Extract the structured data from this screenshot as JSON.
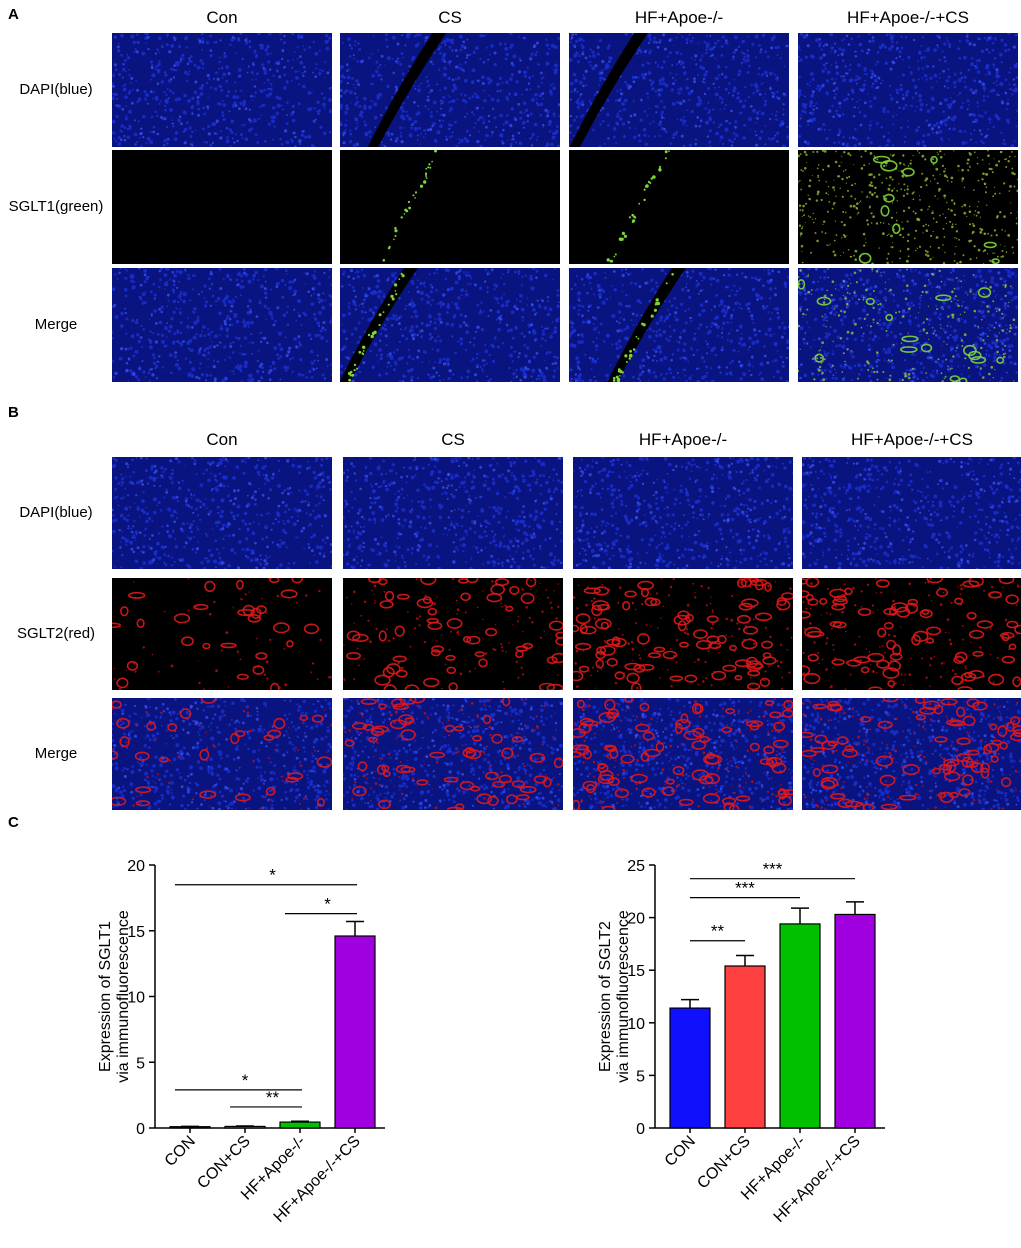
{
  "panel_a": {
    "label": "A",
    "columns": [
      "Con",
      "CS",
      "HF+Apoe-/-",
      "HF+Apoe-/-+CS"
    ],
    "rows": [
      "DAPI(blue)",
      "SGLT1(green)",
      "Merge"
    ]
  },
  "panel_b": {
    "label": "B",
    "columns": [
      "Con",
      "CS",
      "HF+Apoe-/-",
      "HF+Apoe-/-+CS"
    ],
    "rows": [
      "DAPI(blue)",
      "SGLT2(red)",
      "Merge"
    ]
  },
  "panel_c": {
    "label": "C"
  },
  "colors": {
    "dapi": "#1a2fd0",
    "sglt1": "#7dd63a",
    "sglt2": "#e01818",
    "bar_con": "#1010ff",
    "bar_con_cs": "#ff4040",
    "bar_hf": "#00c000",
    "bar_hf_cs": "#a000e0"
  },
  "chart_data": [
    {
      "type": "bar",
      "categories": [
        "CON",
        "CON+CS",
        "HF+Apoe-/-",
        "HF+Apoe-/-+CS"
      ],
      "values": [
        0.1,
        0.12,
        0.45,
        14.6
      ],
      "errors": [
        0.02,
        0.03,
        0.06,
        1.1
      ],
      "ylabel_line1": "Expression of SGLT1",
      "ylabel_line2": "via immunofluorescence",
      "ylim": [
        0,
        20
      ],
      "yticks": [
        0,
        5,
        10,
        15,
        20
      ],
      "significance": [
        {
          "from": 0,
          "to": 3,
          "label": "*"
        },
        {
          "from": 2,
          "to": 3,
          "label": "*"
        },
        {
          "from": 0,
          "to": 2,
          "label": "*"
        },
        {
          "from": 1,
          "to": 2,
          "label": "**"
        }
      ]
    },
    {
      "type": "bar",
      "categories": [
        "CON",
        "CON+CS",
        "HF+Apoe-/-",
        "HF+Apoe-/-+CS"
      ],
      "values": [
        11.4,
        15.4,
        19.4,
        20.3
      ],
      "errors": [
        0.8,
        1.0,
        1.5,
        1.2
      ],
      "ylabel_line1": "Expression of SGLT2",
      "ylabel_line2": "via immunofluorescence",
      "ylim": [
        0,
        25
      ],
      "yticks": [
        0,
        5,
        10,
        15,
        20,
        25
      ],
      "significance": [
        {
          "from": 0,
          "to": 3,
          "label": "***"
        },
        {
          "from": 0,
          "to": 2,
          "label": "***"
        },
        {
          "from": 0,
          "to": 1,
          "label": "**"
        }
      ]
    }
  ]
}
